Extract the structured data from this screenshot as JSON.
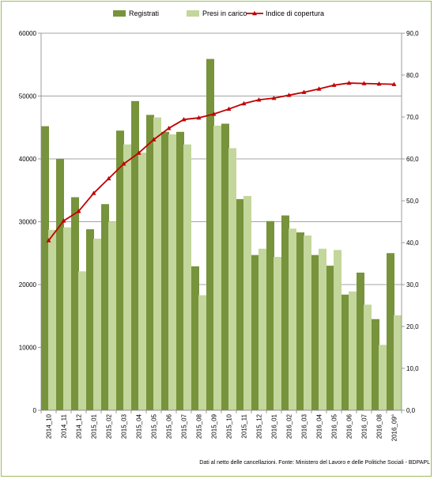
{
  "chart_data": {
    "type": "bar",
    "categories": [
      "2014_10",
      "2014_11",
      "2014_12",
      "2015_01",
      "2015_02",
      "2015_03",
      "2015_04",
      "2015_05",
      "2015_06",
      "2015_07",
      "2015_08",
      "2015_09",
      "2015_10",
      "2015_11",
      "2015_12",
      "2016_01",
      "2016_02",
      "2016_03",
      "2016_04",
      "2016_05",
      "2016_06",
      "2016_07",
      "2016_08",
      "2016_09°"
    ],
    "series": [
      {
        "name": "Registrati",
        "type": "bar",
        "axis": "left",
        "color": "#77933c",
        "values": [
          45200,
          40000,
          33900,
          28800,
          32800,
          44500,
          49200,
          47000,
          44300,
          44300,
          22900,
          55900,
          45600,
          33600,
          24700,
          30100,
          31000,
          28300,
          24700,
          23000,
          18400,
          21900,
          14500,
          25000
        ]
      },
      {
        "name": "Presi in carico",
        "type": "bar",
        "axis": "left",
        "color": "#c3d69b",
        "values": [
          28700,
          29100,
          22100,
          27300,
          30000,
          42300,
          41000,
          46600,
          43900,
          42300,
          18300,
          45300,
          41700,
          34100,
          25700,
          24400,
          28900,
          27800,
          25700,
          25500,
          18900,
          16800,
          10400,
          15100
        ]
      },
      {
        "name": "Indice di copertura",
        "type": "line",
        "axis": "right",
        "color": "#c00000",
        "values": [
          40.5,
          45.2,
          47.5,
          51.8,
          55.3,
          58.8,
          61.4,
          64.6,
          67.3,
          69.4,
          69.8,
          70.7,
          71.9,
          73.2,
          74.1,
          74.5,
          75.2,
          75.9,
          76.7,
          77.6,
          78.1,
          78.0,
          77.9,
          77.8
        ]
      }
    ],
    "left_axis": {
      "min": 0,
      "max": 60000,
      "ticks": [
        "0",
        "10000",
        "20000",
        "30000",
        "40000",
        "50000",
        "60000"
      ]
    },
    "right_axis": {
      "min": 0,
      "max": 90,
      "ticks": [
        "0,0",
        "10,0",
        "20,0",
        "30,0",
        "40,0",
        "50,0",
        "60,0",
        "70,0",
        "80,0",
        "90,0"
      ]
    },
    "grid": true,
    "legend_position": "top",
    "footnote": "Dati al netto delle cancellazioni. Fonte: Ministero del Lavoro e delle Politiche Sociali - BDPAPL"
  }
}
